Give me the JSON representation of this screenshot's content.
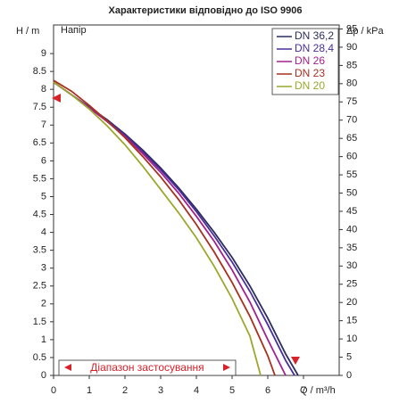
{
  "chart_data": {
    "type": "line",
    "title": "Характеристики відповідно до ISO 9906",
    "y_label": "H / m",
    "y2_label": "Δp / kPa",
    "x_label": "Q / m³/h",
    "inner_label": "Напір",
    "range_label": "Діапазон застосування",
    "xlim": [
      0,
      8
    ],
    "xticks": [
      0,
      1,
      2,
      3,
      4,
      5,
      6,
      7
    ],
    "ylim": [
      0,
      9.8
    ],
    "yticks": [
      0,
      0.5,
      1,
      1.5,
      2,
      2.5,
      3,
      3.5,
      4,
      4.5,
      5,
      5.5,
      6,
      6.5,
      7,
      7.5,
      8,
      8.5,
      9
    ],
    "y2lim": [
      0,
      96.1
    ],
    "y2ticks": [
      0,
      5,
      10,
      15,
      20,
      25,
      30,
      35,
      40,
      45,
      50,
      55,
      60,
      65,
      70,
      75,
      80,
      85,
      90,
      95
    ],
    "series": [
      {
        "name": "DN 36,2",
        "color": "#2b2f5c",
        "x": [
          0,
          0.5,
          1,
          1.5,
          2,
          2.5,
          3,
          3.5,
          4,
          4.5,
          5,
          5.5,
          6,
          6.5,
          6.85
        ],
        "values": [
          8.2,
          7.85,
          7.5,
          7.15,
          6.75,
          6.3,
          5.8,
          5.25,
          4.65,
          4.0,
          3.3,
          2.5,
          1.6,
          0.6,
          0
        ]
      },
      {
        "name": "DN 28,4",
        "color": "#4a2e9c",
        "x": [
          0,
          0.5,
          1,
          1.5,
          2,
          2.5,
          3,
          3.5,
          4,
          4.5,
          5,
          5.5,
          6,
          6.5,
          6.75
        ],
        "values": [
          8.2,
          7.85,
          7.5,
          7.13,
          6.72,
          6.25,
          5.75,
          5.2,
          4.58,
          3.9,
          3.17,
          2.35,
          1.42,
          0.42,
          0
        ]
      },
      {
        "name": "DN 26",
        "color": "#a3208f",
        "x": [
          0,
          0.5,
          1,
          1.5,
          2,
          2.5,
          3,
          3.5,
          4,
          4.5,
          5,
          5.5,
          6,
          6.5
        ],
        "values": [
          8.2,
          7.85,
          7.48,
          7.1,
          6.68,
          6.2,
          5.68,
          5.1,
          4.45,
          3.75,
          2.95,
          2.05,
          1.0,
          0
        ]
      },
      {
        "name": "DN 23",
        "color": "#a8301f",
        "x": [
          0,
          0.5,
          1,
          1.5,
          2,
          2.5,
          3,
          3.5,
          4,
          4.5,
          5,
          5.5,
          6,
          6.2
        ],
        "values": [
          8.25,
          7.95,
          7.55,
          7.12,
          6.65,
          6.12,
          5.55,
          4.92,
          4.22,
          3.45,
          2.6,
          1.65,
          0.55,
          0
        ]
      },
      {
        "name": "DN 20",
        "color": "#9ca72b",
        "x": [
          0,
          0.5,
          1,
          1.5,
          2,
          2.5,
          3,
          3.5,
          4,
          4.5,
          5,
          5.5,
          5.8
        ],
        "values": [
          8.2,
          7.85,
          7.45,
          6.98,
          6.45,
          5.85,
          5.2,
          4.55,
          3.85,
          3.05,
          2.15,
          1.1,
          0
        ]
      }
    ]
  }
}
